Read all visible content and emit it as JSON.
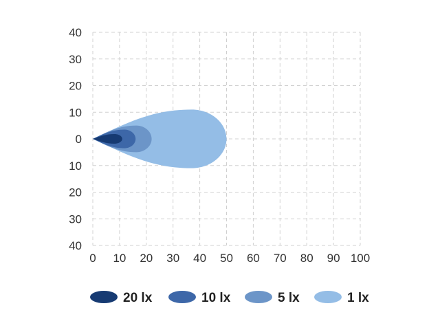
{
  "chart_data": {
    "type": "area",
    "xlim": [
      0,
      100
    ],
    "ylim": [
      -40,
      40
    ],
    "x_ticks": [
      0,
      10,
      20,
      30,
      40,
      50,
      60,
      70,
      80,
      90,
      100
    ],
    "x_tick_labels": [
      "0",
      "10",
      "20",
      "30",
      "40",
      "50",
      "60",
      "70",
      "80",
      "90",
      "100"
    ],
    "y_ticks": [
      40,
      30,
      20,
      10,
      0,
      -10,
      -20,
      -30,
      -40
    ],
    "y_tick_labels": [
      "40",
      "30",
      "20",
      "10",
      "0",
      "10",
      "20",
      "30",
      "40"
    ],
    "grid": true,
    "grid_style": "dashed",
    "legend_position": "bottom",
    "series": [
      {
        "name": "1 lx",
        "color": "#94bde6",
        "reach": 50,
        "half_width": 11
      },
      {
        "name": "5 lx",
        "color": "#6c95c8",
        "reach": 22,
        "half_width": 5
      },
      {
        "name": "10 lx",
        "color": "#3d67a8",
        "reach": 16,
        "half_width": 3.5
      },
      {
        "name": "20 lx",
        "color": "#163a72",
        "reach": 11,
        "half_width": 1.8
      }
    ],
    "legend_order": [
      "20 lx",
      "10 lx",
      "5 lx",
      "1 lx"
    ]
  }
}
